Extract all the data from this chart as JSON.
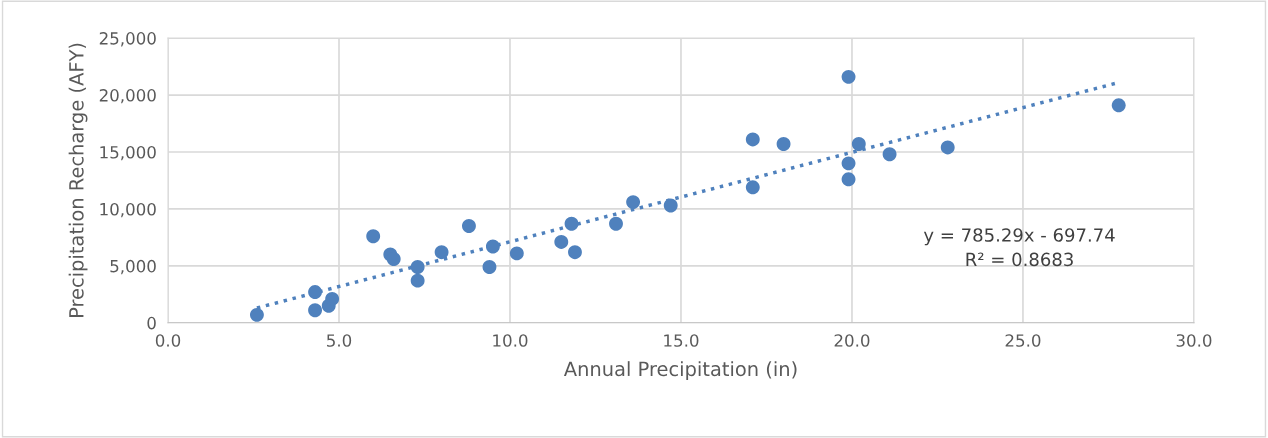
{
  "chart_data": {
    "type": "scatter",
    "xlabel": "Annual Precipitation (in)",
    "ylabel": "Precipitation Recharge (AFY)",
    "series": [
      {
        "color": "#4f81bd",
        "marker": "circle",
        "x": [
          2.6,
          4.3,
          4.3,
          4.7,
          4.8,
          6.0,
          6.5,
          6.6,
          7.3,
          7.3,
          8.0,
          8.8,
          9.4,
          9.5,
          10.2,
          11.5,
          11.8,
          11.9,
          13.1,
          13.6,
          14.7,
          17.1,
          17.1,
          18.0,
          19.9,
          19.9,
          19.9,
          20.2,
          21.1,
          22.8,
          27.8
        ],
        "values": [
          700,
          2700,
          1100,
          1500,
          2100,
          7600,
          6000,
          5600,
          4900,
          3700,
          6200,
          8500,
          4900,
          6700,
          6100,
          7100,
          8700,
          6200,
          8700,
          10600,
          10300,
          11900,
          16100,
          15700,
          21600,
          14000,
          12600,
          15700,
          14800,
          15400,
          19100
        ]
      },
      {
        "type": "line",
        "color": "#4f81bd",
        "line_style": "dotted",
        "marker": "none",
        "x": [
          2.6,
          27.8
        ],
        "values": [
          1300,
          21100
        ]
      }
    ],
    "annotations": [
      "y = 785.29x - 697.74",
      "R² = 0.8683"
    ],
    "xlim": [
      0,
      30
    ],
    "xticks": [
      {
        "value": 0,
        "label": "0.0"
      },
      {
        "value": 5,
        "label": "5.0"
      },
      {
        "value": 10,
        "label": "10.0"
      },
      {
        "value": 15,
        "label": "15.0"
      },
      {
        "value": 20,
        "label": "20.0"
      },
      {
        "value": 25,
        "label": "25.0"
      },
      {
        "value": 30,
        "label": "30.0"
      }
    ],
    "ylim": [
      0,
      25000
    ],
    "yticks": [
      {
        "value": 0,
        "label": "0"
      },
      {
        "value": 5000,
        "label": "5,000"
      },
      {
        "value": 10000,
        "label": "10,000"
      },
      {
        "value": 15000,
        "label": "15,000"
      },
      {
        "value": 20000,
        "label": "20,000"
      },
      {
        "value": 25000,
        "label": "25,000"
      }
    ],
    "grid": true,
    "legend": false
  }
}
